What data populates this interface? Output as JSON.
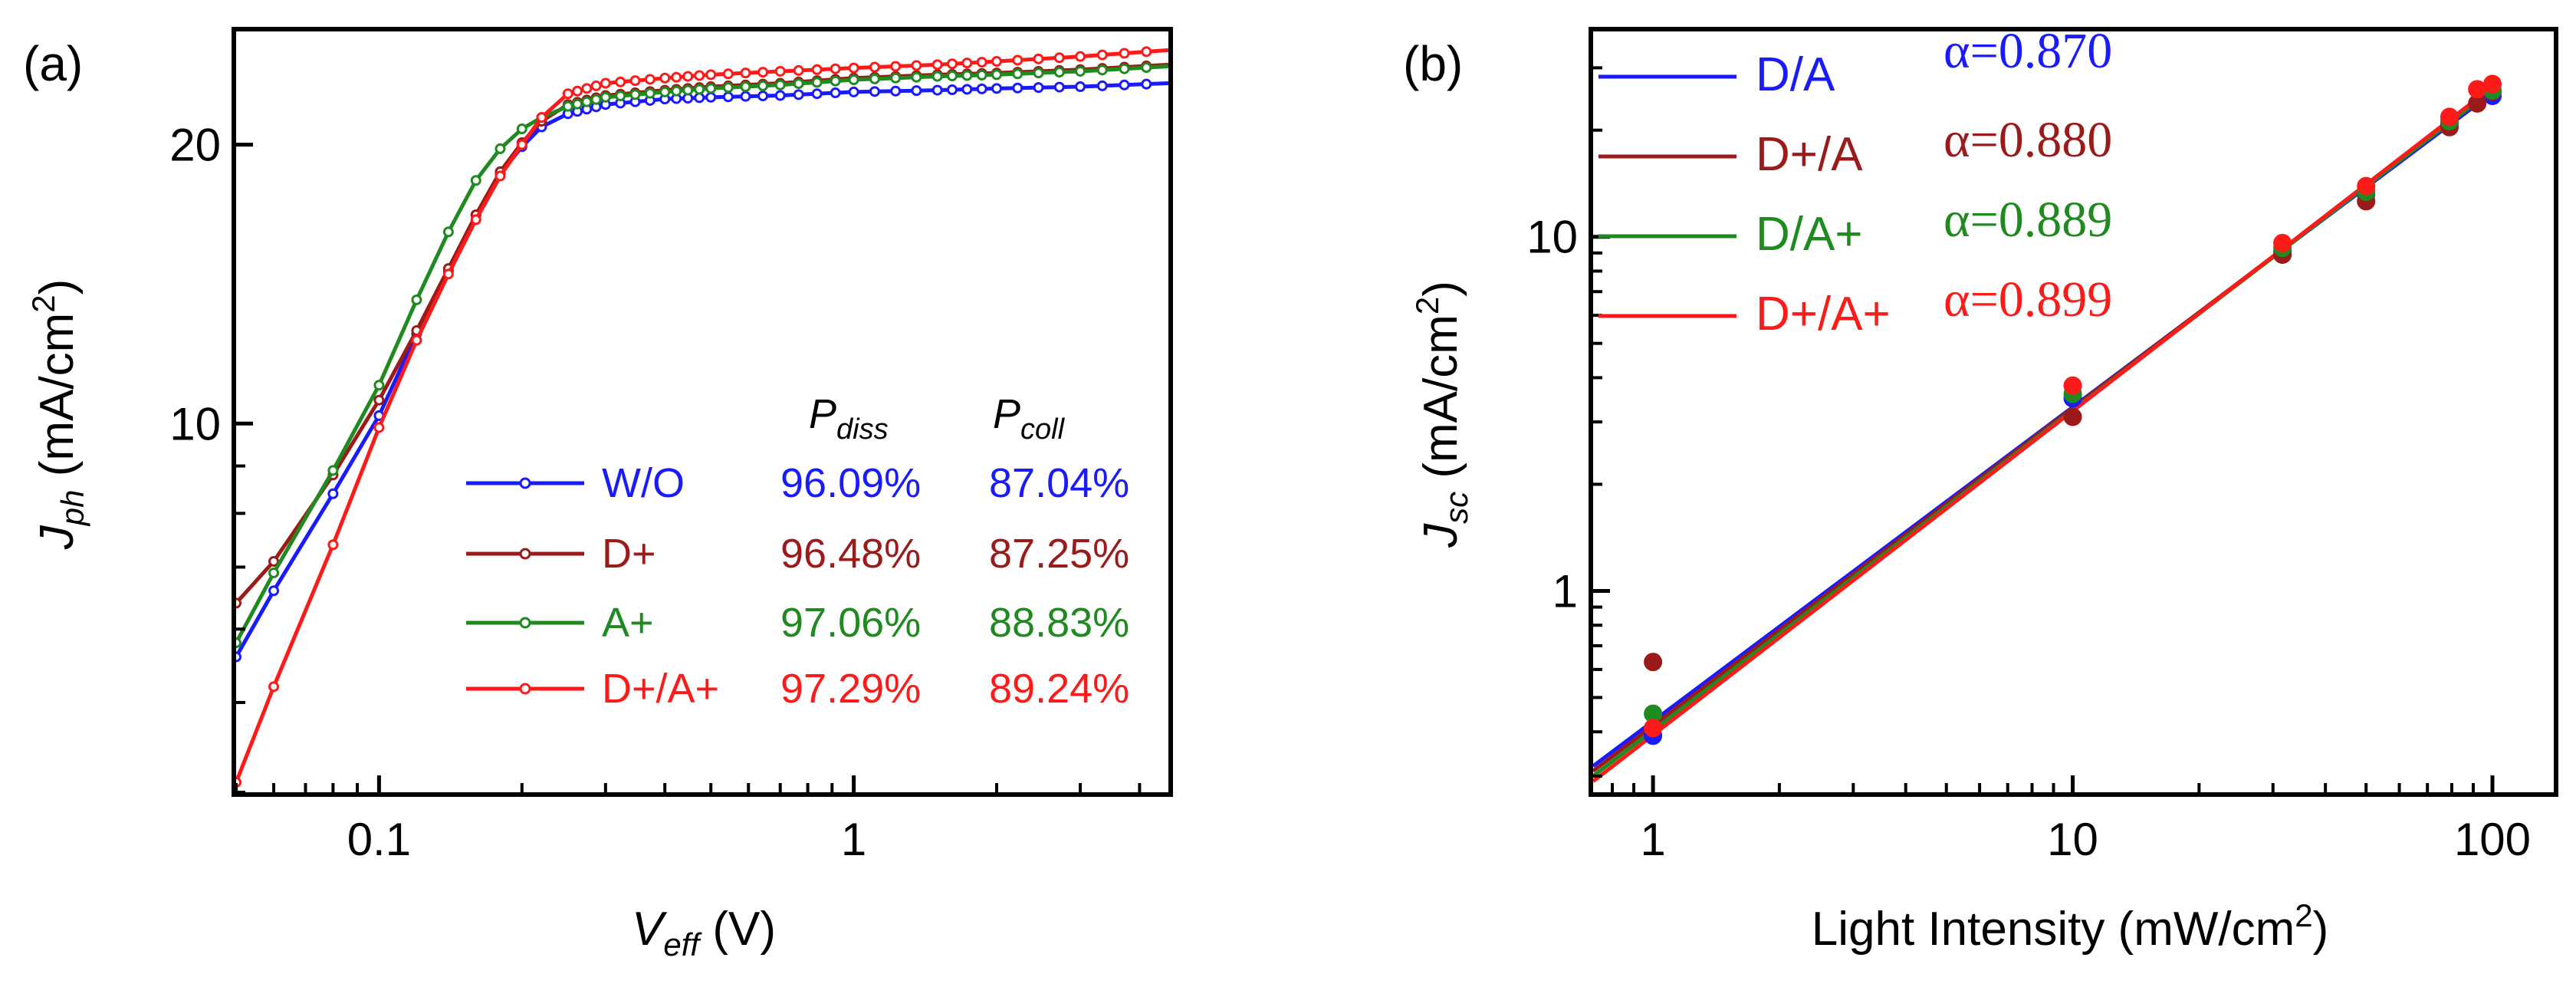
{
  "chart_data": [
    {
      "panel_label": "(a)",
      "type": "line",
      "xscale": "log",
      "yscale": "log",
      "xlim": [
        0.05,
        4.6
      ],
      "ylim": [
        4.0,
        26.5
      ],
      "xlabel": {
        "main": "V",
        "sub": "eff",
        "unit": " (V)"
      },
      "ylabel": {
        "main": "J",
        "sub": "ph",
        "unit": " (mA/cm",
        "sup": "2",
        "close": ")"
      },
      "xticks": [
        {
          "value": 0.1,
          "label": "0.1"
        },
        {
          "value": 1,
          "label": "1"
        }
      ],
      "yticks": [
        {
          "value": 10,
          "label": "10"
        },
        {
          "value": 20,
          "label": "20"
        }
      ],
      "table_headers": {
        "diss": {
          "main": "P",
          "sub": "diss"
        },
        "coll": {
          "main": "P",
          "sub": "coll"
        }
      },
      "series": [
        {
          "name": "W/O",
          "color": "#1a1aff",
          "p_diss": "96.09%",
          "p_coll": "87.04%",
          "x": [
            0.05,
            0.06,
            0.08,
            0.1,
            0.12,
            0.14,
            0.16,
            0.18,
            0.2,
            0.22,
            0.25,
            0.3,
            0.4,
            0.5,
            0.7,
            1.0,
            1.5,
            2.0,
            3.0,
            4.6
          ],
          "y": [
            5.6,
            6.6,
            8.4,
            10.2,
            12.5,
            14.6,
            16.8,
            18.6,
            19.9,
            20.9,
            21.6,
            22.1,
            22.4,
            22.5,
            22.6,
            22.8,
            22.9,
            23.0,
            23.1,
            23.3
          ]
        },
        {
          "name": "D+",
          "color": "#9b1b1b",
          "p_diss": "96.48%",
          "p_coll": "87.25%",
          "x": [
            0.05,
            0.06,
            0.08,
            0.1,
            0.12,
            0.14,
            0.16,
            0.18,
            0.2,
            0.22,
            0.25,
            0.3,
            0.4,
            0.5,
            0.7,
            1.0,
            1.5,
            2.0,
            3.0,
            4.6
          ],
          "y": [
            6.4,
            7.1,
            8.8,
            10.6,
            12.6,
            14.7,
            16.8,
            18.7,
            20.1,
            21.2,
            22.1,
            22.6,
            22.9,
            23.1,
            23.3,
            23.6,
            23.8,
            23.9,
            24.1,
            24.4
          ]
        },
        {
          "name": "A+",
          "color": "#1f8a1f",
          "p_diss": "97.06%",
          "p_coll": "88.83%",
          "x": [
            0.05,
            0.06,
            0.08,
            0.1,
            0.12,
            0.14,
            0.16,
            0.18,
            0.2,
            0.22,
            0.25,
            0.3,
            0.4,
            0.5,
            0.7,
            1.0,
            1.5,
            2.0,
            3.0,
            4.6
          ],
          "y": [
            5.8,
            6.9,
            8.9,
            11.0,
            13.6,
            16.1,
            18.3,
            19.8,
            20.8,
            21.4,
            22.0,
            22.5,
            22.8,
            23.0,
            23.2,
            23.5,
            23.7,
            23.8,
            24.0,
            24.3
          ]
        },
        {
          "name": "D+/A+",
          "color": "#ff1a1a",
          "p_diss": "97.29%",
          "p_coll": "89.24%",
          "x": [
            0.05,
            0.06,
            0.08,
            0.1,
            0.12,
            0.14,
            0.16,
            0.18,
            0.2,
            0.22,
            0.25,
            0.3,
            0.4,
            0.5,
            0.7,
            1.0,
            1.5,
            2.0,
            3.0,
            4.6
          ],
          "y": [
            4.1,
            5.2,
            7.4,
            9.9,
            12.3,
            14.5,
            16.6,
            18.5,
            20.0,
            21.4,
            22.7,
            23.3,
            23.6,
            23.8,
            24.0,
            24.2,
            24.4,
            24.6,
            24.9,
            25.3
          ]
        }
      ]
    },
    {
      "panel_label": "(b)",
      "type": "scatter",
      "xscale": "log",
      "yscale": "log",
      "xlim": [
        0.72,
        140
      ],
      "ylim": [
        0.27,
        38
      ],
      "xlabel": {
        "main": "Light Intensity (mW/cm",
        "sup": "2",
        "close": ")"
      },
      "ylabel": {
        "main": "J",
        "sub": "sc",
        "unit": " (mA/cm",
        "sup": "2",
        "close": ")"
      },
      "xticks": [
        {
          "value": 1,
          "label": "1"
        },
        {
          "value": 10,
          "label": "10"
        },
        {
          "value": 100,
          "label": "100"
        }
      ],
      "yticks": [
        {
          "value": 1,
          "label": "1"
        },
        {
          "value": 10,
          "label": "10"
        }
      ],
      "series": [
        {
          "name": "D/A",
          "color": "#1a1aff",
          "alpha": "α=0.870",
          "points": [
            [
              1,
              0.39
            ],
            [
              10,
              3.5
            ],
            [
              31.6,
              9.1
            ],
            [
              50,
              13.2
            ],
            [
              79,
              20.8
            ],
            [
              100,
              25.0
            ]
          ],
          "fit": [
            [
              0.72,
              0.32
            ],
            [
              100,
              25.5
            ]
          ]
        },
        {
          "name": "D+/A",
          "color": "#9b1b1b",
          "alpha": "α=0.880",
          "points": [
            [
              1,
              0.63
            ],
            [
              10,
              3.1
            ],
            [
              31.6,
              8.9
            ],
            [
              50,
              12.6
            ],
            [
              79,
              20.4
            ],
            [
              92,
              23.8
            ],
            [
              100,
              25.7
            ]
          ],
          "fit": [
            [
              0.72,
              0.31
            ],
            [
              100,
              25.9
            ]
          ]
        },
        {
          "name": "D/A+",
          "color": "#1f8a1f",
          "alpha": "α=0.889",
          "points": [
            [
              1,
              0.45
            ],
            [
              10,
              3.6
            ],
            [
              31.6,
              9.3
            ],
            [
              50,
              13.4
            ],
            [
              79,
              21.2
            ],
            [
              100,
              25.9
            ]
          ],
          "fit": [
            [
              0.72,
              0.3
            ],
            [
              100,
              26.0
            ]
          ]
        },
        {
          "name": "D+/A+",
          "color": "#ff1a1a",
          "alpha": "α=0.899",
          "points": [
            [
              1,
              0.41
            ],
            [
              10,
              3.8
            ],
            [
              31.6,
              9.6
            ],
            [
              50,
              13.9
            ],
            [
              79,
              21.8
            ],
            [
              92,
              26.1
            ],
            [
              100,
              27.0
            ]
          ],
          "fit": [
            [
              0.72,
              0.29
            ],
            [
              100,
              26.5
            ]
          ]
        }
      ]
    }
  ]
}
